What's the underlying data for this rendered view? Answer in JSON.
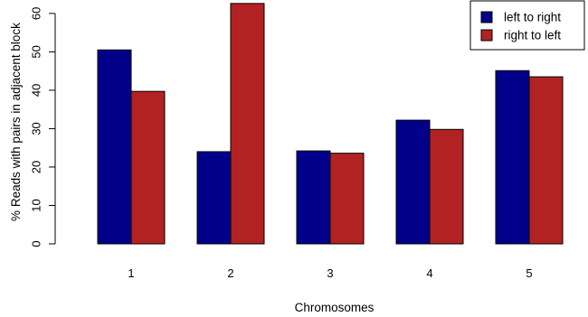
{
  "chart_data": {
    "type": "bar",
    "categories": [
      "1",
      "2",
      "3",
      "4",
      "5"
    ],
    "series": [
      {
        "name": "left to right",
        "color": "#00008B",
        "values": [
          50.5,
          24.0,
          24.2,
          32.2,
          45.1
        ]
      },
      {
        "name": "right to left",
        "color": "#B22222",
        "values": [
          39.7,
          62.6,
          23.6,
          29.8,
          43.5
        ]
      }
    ],
    "xlabel": "Chromosomes",
    "ylabel": "% Reads with pairs in adjacent block",
    "ylim": [
      0,
      63.5
    ],
    "yticks": [
      0,
      10,
      20,
      30,
      40,
      50,
      60
    ],
    "grid": false,
    "legend_position": "top-right"
  }
}
